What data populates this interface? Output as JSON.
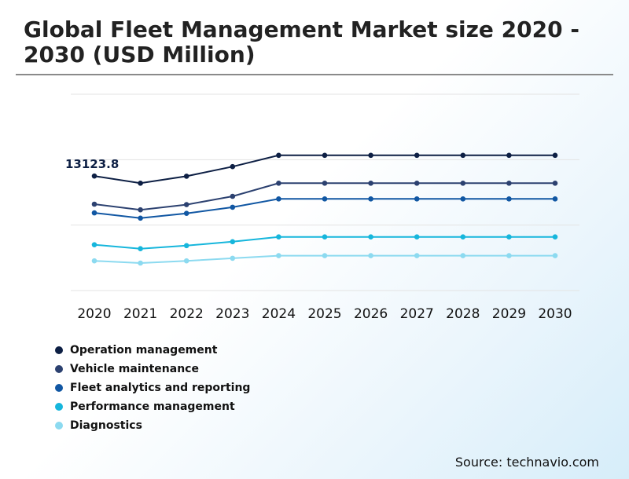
{
  "title": "Global Fleet Management Market size 2020 - 2030 (USD Million)",
  "source": "Source: technavio.com",
  "chart_data": {
    "type": "line",
    "title": "Global Fleet Management Market size 2020 - 2030 (USD Million)",
    "x": [
      "2020",
      "2021",
      "2022",
      "2023",
      "2024",
      "2025",
      "2026",
      "2027",
      "2028",
      "2029",
      "2030"
    ],
    "ylim": [
      0,
      22500
    ],
    "grid": true,
    "legend_position": "bottom-left",
    "annotation": {
      "text": "13123.8",
      "series": 0,
      "index": 0
    },
    "series": [
      {
        "name": "Operation management",
        "color": "#0d1f44",
        "values": [
          13123.8,
          12300,
          13100,
          14200,
          15500,
          15500,
          15500,
          15500,
          15500,
          15500,
          15500
        ]
      },
      {
        "name": "Vehicle maintenance",
        "color": "#2c4170",
        "values": [
          9900,
          9250,
          9850,
          10800,
          12300,
          12300,
          12300,
          12300,
          12300,
          12300,
          12300
        ]
      },
      {
        "name": "Fleet analytics and reporting",
        "color": "#1157a3",
        "values": [
          8900,
          8300,
          8850,
          9550,
          10500,
          10500,
          10500,
          10500,
          10500,
          10500,
          10500
        ]
      },
      {
        "name": "Performance management",
        "color": "#16b6dc",
        "values": [
          5250,
          4800,
          5150,
          5600,
          6150,
          6150,
          6150,
          6150,
          6150,
          6150,
          6150
        ]
      },
      {
        "name": "Diagnostics",
        "color": "#8cdaf0",
        "values": [
          3400,
          3150,
          3400,
          3700,
          4000,
          4000,
          4000,
          4000,
          4000,
          4000,
          4000
        ]
      }
    ]
  }
}
